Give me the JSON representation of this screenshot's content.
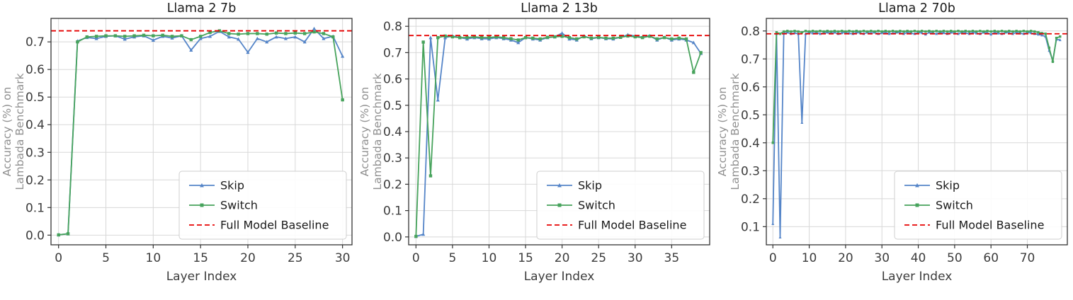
{
  "page": {
    "background": "#ffffff"
  },
  "colors": {
    "skip": "#5585c8",
    "switch": "#47a35c",
    "baseline": "#e60000",
    "grid": "#d8d8d8",
    "spine": "#333333",
    "tick_label": "#3c3c3c",
    "xlabel_color": "#3c3c3c",
    "ylabel_color": "#909090",
    "title_color": "#1a1a1a",
    "legend_border": "#cfcfcf",
    "legend_bg": "#ffffff"
  },
  "legend": {
    "labels": [
      "Skip",
      "Switch",
      "Full Model Baseline"
    ]
  },
  "chart_data": [
    {
      "type": "line",
      "title": "Llama 2 7b",
      "xlabel": "Layer Index",
      "ylabel_lines": [
        "Accuracy (%) on",
        "Lambada Benchmark"
      ],
      "xlim": [
        -0.8,
        31.0
      ],
      "ylim": [
        -0.035,
        0.785
      ],
      "xticks": [
        0,
        5,
        10,
        15,
        20,
        25,
        30
      ],
      "yticks": [
        0.0,
        0.1,
        0.2,
        0.3,
        0.4,
        0.5,
        0.6,
        0.7
      ],
      "baseline": 0.74,
      "baseline_label": "Full Model Baseline",
      "grid": true,
      "legend_position": "lower right",
      "series": [
        {
          "name": "Skip",
          "color_key": "skip",
          "marker": "triangle",
          "values": [
            0.001,
            0.005,
            0.703,
            0.716,
            0.712,
            0.72,
            0.722,
            0.71,
            0.718,
            0.722,
            0.706,
            0.72,
            0.714,
            0.722,
            0.67,
            0.712,
            0.72,
            0.738,
            0.718,
            0.71,
            0.662,
            0.712,
            0.7,
            0.718,
            0.712,
            0.718,
            0.7,
            0.748,
            0.712,
            0.72,
            0.648
          ]
        },
        {
          "name": "Switch",
          "color_key": "switch",
          "marker": "square",
          "values": [
            0.001,
            0.005,
            0.7,
            0.718,
            0.72,
            0.722,
            0.722,
            0.72,
            0.722,
            0.724,
            0.722,
            0.724,
            0.72,
            0.722,
            0.708,
            0.72,
            0.734,
            0.74,
            0.73,
            0.728,
            0.73,
            0.73,
            0.728,
            0.732,
            0.73,
            0.732,
            0.73,
            0.736,
            0.73,
            0.718,
            0.49
          ]
        }
      ]
    },
    {
      "type": "line",
      "title": "Llama 2 13b",
      "xlabel": "Layer Index",
      "ylabel_lines": [
        "Accuracy (%) on",
        "Lambada Benchmark"
      ],
      "xlim": [
        -1.0,
        40.2
      ],
      "ylim": [
        -0.03,
        0.83
      ],
      "xticks": [
        0,
        5,
        10,
        15,
        20,
        25,
        30,
        35
      ],
      "yticks": [
        0.0,
        0.1,
        0.2,
        0.3,
        0.4,
        0.5,
        0.6,
        0.7,
        0.8
      ],
      "baseline": 0.765,
      "baseline_label": "Full Model Baseline",
      "grid": true,
      "legend_position": "lower right",
      "series": [
        {
          "name": "Skip",
          "color_key": "skip",
          "marker": "triangle",
          "values": [
            0.002,
            0.01,
            0.757,
            0.52,
            0.757,
            0.763,
            0.757,
            0.752,
            0.757,
            0.753,
            0.752,
            0.757,
            0.753,
            0.748,
            0.738,
            0.757,
            0.752,
            0.748,
            0.757,
            0.76,
            0.774,
            0.752,
            0.748,
            0.763,
            0.753,
            0.757,
            0.753,
            0.752,
            0.758,
            0.768,
            0.763,
            0.758,
            0.764,
            0.748,
            0.758,
            0.748,
            0.752,
            0.748,
            0.738,
            0.697
          ]
        },
        {
          "name": "Switch",
          "color_key": "switch",
          "marker": "square",
          "values": [
            0.002,
            0.74,
            0.232,
            0.757,
            0.763,
            0.76,
            0.757,
            0.757,
            0.76,
            0.757,
            0.757,
            0.76,
            0.757,
            0.753,
            0.748,
            0.757,
            0.755,
            0.752,
            0.758,
            0.76,
            0.762,
            0.757,
            0.752,
            0.76,
            0.755,
            0.758,
            0.755,
            0.755,
            0.758,
            0.763,
            0.76,
            0.757,
            0.762,
            0.752,
            0.757,
            0.752,
            0.755,
            0.752,
            0.625,
            0.7
          ]
        }
      ]
    },
    {
      "type": "line",
      "title": "Llama 2 70b",
      "xlabel": "Layer Index",
      "ylabel_lines": [
        "Accuracy (%) on",
        "Lambada Benchmark"
      ],
      "xlim": [
        -1.8,
        81.0
      ],
      "ylim": [
        0.035,
        0.845
      ],
      "xticks": [
        0,
        10,
        20,
        30,
        40,
        50,
        60,
        70
      ],
      "yticks": [
        0.1,
        0.2,
        0.3,
        0.4,
        0.5,
        0.6,
        0.7,
        0.8
      ],
      "baseline": 0.79,
      "baseline_label": "Full Model Baseline",
      "grid": true,
      "legend_position": "lower right",
      "series": [
        {
          "name": "Skip",
          "color_key": "skip",
          "marker": "triangle",
          "values": [
            0.11,
            0.79,
            0.062,
            0.792,
            0.795,
            0.79,
            0.793,
            0.79,
            0.472,
            0.79,
            0.795,
            0.792,
            0.795,
            0.79,
            0.793,
            0.795,
            0.792,
            0.795,
            0.79,
            0.793,
            0.795,
            0.792,
            0.79,
            0.795,
            0.793,
            0.79,
            0.795,
            0.792,
            0.795,
            0.79,
            0.793,
            0.795,
            0.79,
            0.792,
            0.795,
            0.793,
            0.79,
            0.795,
            0.792,
            0.79,
            0.795,
            0.793,
            0.788,
            0.795,
            0.792,
            0.79,
            0.795,
            0.793,
            0.79,
            0.795,
            0.792,
            0.79,
            0.795,
            0.793,
            0.79,
            0.795,
            0.792,
            0.79,
            0.795,
            0.793,
            0.788,
            0.795,
            0.792,
            0.79,
            0.795,
            0.793,
            0.79,
            0.795,
            0.792,
            0.79,
            0.795,
            0.793,
            0.79,
            0.788,
            0.785,
            0.78,
            0.73,
            0.695,
            0.77,
            0.768
          ]
        },
        {
          "name": "Switch",
          "color_key": "switch",
          "marker": "square",
          "values": [
            0.4,
            0.795,
            0.79,
            0.798,
            0.8,
            0.798,
            0.8,
            0.798,
            0.795,
            0.8,
            0.798,
            0.8,
            0.798,
            0.8,
            0.798,
            0.8,
            0.798,
            0.8,
            0.798,
            0.8,
            0.798,
            0.8,
            0.798,
            0.8,
            0.798,
            0.8,
            0.798,
            0.8,
            0.798,
            0.8,
            0.798,
            0.8,
            0.798,
            0.8,
            0.798,
            0.8,
            0.798,
            0.8,
            0.798,
            0.8,
            0.798,
            0.8,
            0.798,
            0.8,
            0.798,
            0.8,
            0.798,
            0.8,
            0.798,
            0.8,
            0.798,
            0.8,
            0.798,
            0.8,
            0.798,
            0.8,
            0.798,
            0.8,
            0.798,
            0.8,
            0.798,
            0.8,
            0.798,
            0.8,
            0.798,
            0.8,
            0.798,
            0.8,
            0.798,
            0.8,
            0.798,
            0.8,
            0.798,
            0.795,
            0.792,
            0.79,
            0.74,
            0.69,
            0.775,
            0.78
          ]
        }
      ]
    }
  ]
}
